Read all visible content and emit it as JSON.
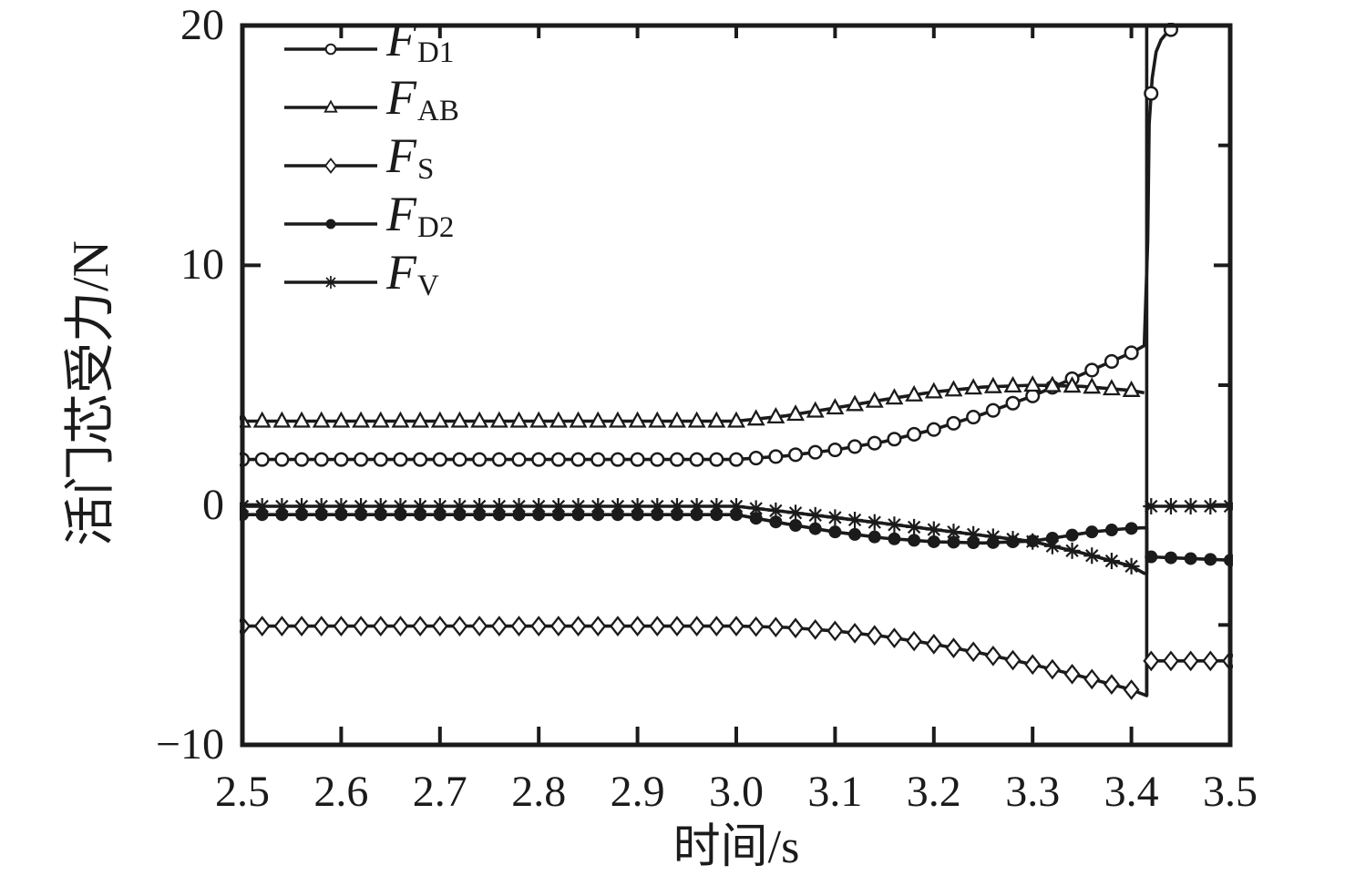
{
  "figure": {
    "background": "#ffffff",
    "ink_color": "#1b1b1b"
  },
  "chart_data": {
    "type": "line",
    "title": "",
    "xlabel": "时间/s",
    "ylabel": "活门芯受力/N",
    "xlim": [
      2.5,
      3.5
    ],
    "ylim": [
      -10,
      20
    ],
    "grid": false,
    "legend_position": "top-left-inside",
    "x_ticks": [
      2.5,
      2.6,
      2.7,
      2.8,
      2.9,
      3.0,
      3.1,
      3.2,
      3.3,
      3.4,
      3.5
    ],
    "x_tick_labels": [
      "2.5",
      "2.6",
      "2.7",
      "2.8",
      "2.9",
      "3.0",
      "3.1",
      "3.2",
      "3.3",
      "3.4",
      "3.5"
    ],
    "y_ticks": [
      -10,
      0,
      10,
      20
    ],
    "y_tick_labels": [
      "−10",
      "0",
      "10",
      "20"
    ],
    "right_axis_ticks": [
      -10,
      -5,
      0,
      5,
      10,
      15,
      20
    ],
    "marker_step": 0.02,
    "event_line": {
      "x": 3.4155,
      "y_from": -7.95,
      "y_to": 20
    },
    "series": [
      {
        "name": "F_D1",
        "legend_main": "F",
        "legend_sub": "D1",
        "marker": "circle-open",
        "points": [
          [
            2.5,
            1.9
          ],
          [
            3.0,
            1.9
          ],
          [
            3.05,
            2.05
          ],
          [
            3.1,
            2.3
          ],
          [
            3.15,
            2.65
          ],
          [
            3.2,
            3.15
          ],
          [
            3.25,
            3.8
          ],
          [
            3.3,
            4.55
          ],
          [
            3.35,
            5.45
          ],
          [
            3.4,
            6.35
          ],
          [
            3.413,
            6.65
          ],
          [
            3.4165,
            11.0
          ],
          [
            3.418,
            15.9
          ],
          [
            3.421,
            17.8
          ],
          [
            3.425,
            18.9
          ],
          [
            3.43,
            19.4
          ],
          [
            3.437,
            19.75
          ],
          [
            3.447,
            20.0
          ]
        ]
      },
      {
        "name": "F_AB",
        "legend_main": "F",
        "legend_sub": "AB",
        "marker": "triangle-open",
        "points": [
          [
            2.5,
            3.5
          ],
          [
            3.0,
            3.5
          ],
          [
            3.05,
            3.72
          ],
          [
            3.1,
            4.05
          ],
          [
            3.15,
            4.4
          ],
          [
            3.2,
            4.72
          ],
          [
            3.25,
            4.92
          ],
          [
            3.3,
            5.0
          ],
          [
            3.35,
            4.95
          ],
          [
            3.4,
            4.78
          ],
          [
            3.413,
            4.68
          ]
        ]
      },
      {
        "name": "F_S",
        "legend_main": "F",
        "legend_sub": "S",
        "marker": "diamond-open",
        "points": [
          [
            2.5,
            -5.05
          ],
          [
            3.0,
            -5.05
          ],
          [
            3.05,
            -5.1
          ],
          [
            3.1,
            -5.25
          ],
          [
            3.15,
            -5.48
          ],
          [
            3.2,
            -5.8
          ],
          [
            3.25,
            -6.2
          ],
          [
            3.3,
            -6.65
          ],
          [
            3.35,
            -7.15
          ],
          [
            3.4,
            -7.7
          ],
          [
            3.4155,
            -7.95
          ],
          [
            3.4155,
            -6.5
          ],
          [
            3.5,
            -6.5
          ]
        ]
      },
      {
        "name": "F_D2",
        "legend_main": "F",
        "legend_sub": "D2",
        "marker": "circle-filled",
        "points": [
          [
            2.5,
            -0.4
          ],
          [
            3.0,
            -0.4
          ],
          [
            3.05,
            -0.78
          ],
          [
            3.1,
            -1.12
          ],
          [
            3.15,
            -1.38
          ],
          [
            3.2,
            -1.53
          ],
          [
            3.25,
            -1.58
          ],
          [
            3.3,
            -1.5
          ],
          [
            3.33,
            -1.32
          ],
          [
            3.36,
            -1.12
          ],
          [
            3.39,
            -1.0
          ],
          [
            3.41,
            -0.95
          ],
          [
            3.4155,
            -0.95
          ],
          [
            3.4155,
            -2.15
          ],
          [
            3.44,
            -2.2
          ],
          [
            3.5,
            -2.3
          ]
        ]
      },
      {
        "name": "F_V",
        "legend_main": "F",
        "legend_sub": "V",
        "marker": "asterisk",
        "points": [
          [
            2.5,
            -0.05
          ],
          [
            3.0,
            -0.05
          ],
          [
            3.05,
            -0.28
          ],
          [
            3.1,
            -0.52
          ],
          [
            3.15,
            -0.77
          ],
          [
            3.2,
            -1.02
          ],
          [
            3.25,
            -1.27
          ],
          [
            3.3,
            -1.52
          ],
          [
            3.35,
            -2.0
          ],
          [
            3.4,
            -2.55
          ],
          [
            3.413,
            -2.85
          ],
          [
            3.4155,
            -2.85
          ],
          [
            3.4155,
            -0.05
          ],
          [
            3.5,
            -0.05
          ]
        ]
      }
    ]
  }
}
